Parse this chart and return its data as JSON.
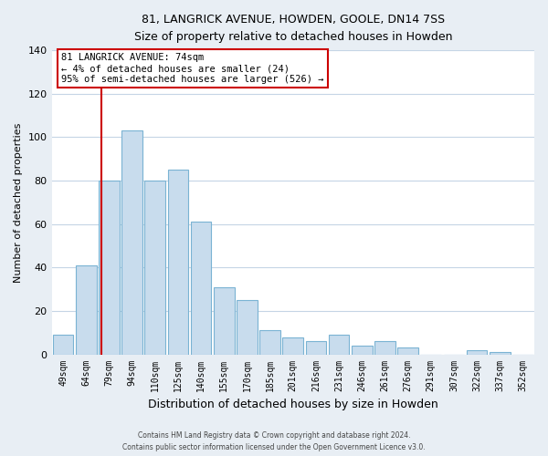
{
  "title": "81, LANGRICK AVENUE, HOWDEN, GOOLE, DN14 7SS",
  "subtitle": "Size of property relative to detached houses in Howden",
  "xlabel": "Distribution of detached houses by size in Howden",
  "ylabel": "Number of detached properties",
  "categories": [
    "49sqm",
    "64sqm",
    "79sqm",
    "94sqm",
    "110sqm",
    "125sqm",
    "140sqm",
    "155sqm",
    "170sqm",
    "185sqm",
    "201sqm",
    "216sqm",
    "231sqm",
    "246sqm",
    "261sqm",
    "276sqm",
    "291sqm",
    "307sqm",
    "322sqm",
    "337sqm",
    "352sqm"
  ],
  "values": [
    9,
    41,
    80,
    103,
    80,
    85,
    61,
    31,
    25,
    11,
    8,
    6,
    9,
    4,
    6,
    3,
    0,
    0,
    2,
    1,
    0
  ],
  "bar_color": "#c8dced",
  "bar_edge_color": "#7ab3d3",
  "annotation_text_line1": "81 LANGRICK AVENUE: 74sqm",
  "annotation_text_line2": "← 4% of detached houses are smaller (24)",
  "annotation_text_line3": "95% of semi-detached houses are larger (526) →",
  "ylim": [
    0,
    140
  ],
  "yticks": [
    0,
    20,
    40,
    60,
    80,
    100,
    120,
    140
  ],
  "footer_line1": "Contains HM Land Registry data © Crown copyright and database right 2024.",
  "footer_line2": "Contains public sector information licensed under the Open Government Licence v3.0.",
  "background_color": "#e8eef4",
  "plot_bg_color": "#ffffff",
  "grid_color": "#c5d5e5",
  "vline_color": "#cc0000"
}
